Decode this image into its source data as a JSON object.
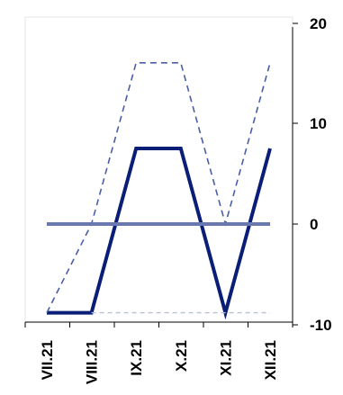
{
  "chart_data": {
    "type": "line",
    "categories": [
      "VII.21",
      "VIII.21",
      "IX.21",
      "X.21",
      "XI.21",
      "XII.21"
    ],
    "y_ticks": [
      "20",
      "10",
      "0",
      "-10"
    ],
    "ylim": [
      -10,
      20
    ],
    "y_axis_position": "right",
    "grid": false,
    "legend": "none",
    "series": [
      {
        "style": "solid",
        "color": "#0a1e78",
        "x": [
          0,
          1,
          2,
          3,
          4,
          5
        ],
        "values": [
          -8.8,
          -8.8,
          7.5,
          7.5,
          -8.8,
          7.5
        ]
      },
      {
        "style": "dashed",
        "color": "#4a5ea8",
        "x": [
          0,
          1,
          2,
          3,
          4,
          5
        ],
        "values": [
          -8.8,
          0,
          16,
          16,
          0,
          16
        ]
      },
      {
        "style": "solid",
        "color": "#6a78b0",
        "x": [
          0,
          5
        ],
        "values": [
          0,
          0
        ]
      },
      {
        "style": "dashed",
        "color": "#b8bfd6",
        "x": [
          1,
          5
        ],
        "values": [
          -8.8,
          -8.8
        ]
      }
    ]
  }
}
